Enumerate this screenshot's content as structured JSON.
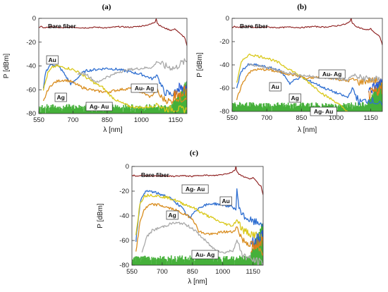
{
  "figure": {
    "panel_labels": [
      "(a)",
      "(b)",
      "(c)"
    ]
  },
  "colors": {
    "bare_fiber": "#8b1a1a",
    "Au": "#2f6fd1",
    "Ag": "#d98d1f",
    "Ag-Au": "#d9c81a",
    "Au-Ag": "#a9a9a9",
    "noise": "#45b03a",
    "tail_blue": "#2b5bd6",
    "tail_orange": "#e07b18"
  },
  "chart_data": [
    {
      "panel": "(a)",
      "type": "line",
      "xlabel": "λ [nm]",
      "ylabel": "P [dBm]",
      "xlim": [
        550,
        1200
      ],
      "ylim": [
        -80,
        0
      ],
      "xticks": [
        550,
        700,
        850,
        1000,
        1150
      ],
      "yticks": [
        0,
        -20,
        -40,
        -60,
        -80
      ],
      "annotations": [
        {
          "text": "Bare fiber",
          "series": "Bare fiber",
          "x": 610,
          "y": -8
        },
        {
          "text": "Au",
          "series": "Au",
          "x": 575,
          "y": -30
        },
        {
          "text": "Ag",
          "series": "Ag",
          "x": 622,
          "y": -59
        },
        {
          "text": "Au- Ag",
          "series": "Au-Ag",
          "x": 965,
          "y": -41
        },
        {
          "text": "Ag- Au",
          "series": "Ag-Au",
          "x": 800,
          "y": -69
        }
      ],
      "series": [
        {
          "name": "Bare fiber",
          "x": [
            550,
            560,
            575,
            600,
            650,
            700,
            750,
            800,
            850,
            900,
            950,
            1000,
            1040,
            1060,
            1065,
            1070,
            1080,
            1100,
            1130,
            1150,
            1170,
            1190,
            1200
          ],
          "y": [
            -8,
            -7,
            -8,
            -7,
            -8,
            -7.5,
            -8,
            -7.5,
            -8,
            -7,
            -7.5,
            -6.5,
            -5,
            -3,
            0,
            -4,
            -6,
            -8,
            -10,
            -9,
            -13,
            -16,
            -23
          ]
        },
        {
          "name": "Au",
          "x": [
            570,
            580,
            600,
            620,
            640,
            660,
            680,
            690,
            700,
            720,
            740,
            760,
            800,
            850,
            900,
            950,
            1000,
            1050,
            1070,
            1080,
            1100,
            1130,
            1150,
            1170,
            1190,
            1200
          ],
          "y": [
            -60,
            -45,
            -39,
            -39,
            -41,
            -46,
            -52,
            -55,
            -54,
            -50,
            -46,
            -44,
            -43,
            -42,
            -43,
            -45,
            -47,
            -51,
            -47,
            -54,
            -62,
            -64,
            -62,
            -58,
            -65,
            -58
          ]
        },
        {
          "name": "Ag",
          "x": [
            570,
            590,
            610,
            630,
            650,
            670,
            690,
            700,
            720,
            740,
            760,
            780,
            800,
            850,
            900,
            950,
            1000,
            1040,
            1060,
            1070,
            1080,
            1100,
            1130,
            1150,
            1170,
            1200
          ],
          "y": [
            -70,
            -60,
            -55,
            -53,
            -52,
            -52,
            -53,
            -54,
            -56,
            -58,
            -59,
            -60,
            -61,
            -62,
            -60,
            -59,
            -62,
            -66,
            -62,
            -60,
            -65,
            -68,
            -70,
            -66,
            -69,
            -65
          ]
        },
        {
          "name": "Ag-Au",
          "x": [
            570,
            590,
            610,
            630,
            650,
            680,
            700,
            730,
            760,
            800,
            830,
            850,
            870,
            900,
            950,
            1000,
            1050,
            1070,
            1100,
            1150,
            1200
          ],
          "y": [
            -60,
            -46,
            -41,
            -40,
            -41,
            -42,
            -43,
            -46,
            -50,
            -55,
            -58,
            -62,
            -66,
            -70,
            -74,
            -75,
            -74,
            -72,
            -76,
            -76,
            -77
          ]
        },
        {
          "name": "Au-Ag",
          "x": [
            720,
            760,
            790,
            810,
            830,
            850,
            870,
            900,
            950,
            1000,
            1050,
            1070,
            1100,
            1150,
            1170,
            1200
          ],
          "y": [
            -46,
            -47,
            -52,
            -54,
            -51,
            -49,
            -48,
            -45,
            -43,
            -42,
            -41,
            -36,
            -40,
            -42,
            -38,
            -36
          ]
        }
      ]
    },
    {
      "panel": "(b)",
      "type": "line",
      "xlabel": "λ [nm]",
      "ylabel": "P [dBm]",
      "xlim": [
        550,
        1200
      ],
      "ylim": [
        -80,
        0
      ],
      "xticks": [
        550,
        700,
        850,
        1000,
        1150
      ],
      "yticks": [
        0,
        -20,
        -40,
        -60,
        -80
      ],
      "annotations": [
        {
          "text": "Bare fiber",
          "series": "Bare fiber",
          "x": 610,
          "y": -8
        },
        {
          "text": "Au",
          "series": "Au",
          "x": 788,
          "y": -53
        },
        {
          "text": "Ag",
          "series": "Ag",
          "x": 836,
          "y": -62
        },
        {
          "text": "Au- Ag",
          "series": "Au-Ag",
          "x": 985,
          "y": -46
        },
        {
          "text": "Ag- Au",
          "series": "Ag-Au",
          "x": 940,
          "y": -77
        }
      ],
      "series": [
        {
          "name": "Bare fiber",
          "x": [
            550,
            560,
            575,
            600,
            650,
            700,
            750,
            800,
            850,
            900,
            950,
            1000,
            1040,
            1060,
            1065,
            1070,
            1080,
            1100,
            1130,
            1150,
            1170,
            1190,
            1200
          ],
          "y": [
            -8,
            -7,
            -8,
            -7,
            -8,
            -7.5,
            -8,
            -7.5,
            -8,
            -7,
            -7.5,
            -6.5,
            -5,
            -3,
            0,
            -4,
            -6,
            -8,
            -10,
            -9,
            -13,
            -16,
            -23
          ]
        },
        {
          "name": "Au",
          "x": [
            570,
            590,
            620,
            650,
            700,
            750,
            780,
            800,
            820,
            850,
            870,
            900,
            950,
            1000,
            1050,
            1070,
            1100,
            1150,
            1200
          ],
          "y": [
            -60,
            -45,
            -40,
            -40,
            -42,
            -44,
            -50,
            -56,
            -53,
            -50,
            -53,
            -55,
            -60,
            -64,
            -68,
            -60,
            -72,
            -70,
            -75
          ]
        },
        {
          "name": "Ag",
          "x": [
            570,
            590,
            620,
            650,
            700,
            750,
            800,
            850,
            870,
            900,
            950,
            1000,
            1050,
            1070,
            1100,
            1150,
            1200
          ],
          "y": [
            -70,
            -58,
            -47,
            -44,
            -44,
            -46,
            -48,
            -50,
            -52,
            -51,
            -50,
            -52,
            -54,
            -52,
            -55,
            -53,
            -55
          ]
        },
        {
          "name": "Ag-Au",
          "x": [
            570,
            590,
            610,
            630,
            650,
            700,
            750,
            800,
            850,
            900,
            950,
            1000,
            1030,
            1050
          ],
          "y": [
            -55,
            -38,
            -33,
            -31,
            -32,
            -34,
            -38,
            -44,
            -50,
            -58,
            -66,
            -72,
            -77,
            -80
          ]
        },
        {
          "name": "Au-Ag",
          "x": [
            620,
            660,
            700,
            750,
            800,
            850,
            900,
            950,
            1000,
            1050,
            1070,
            1100,
            1150,
            1200
          ],
          "y": [
            -40,
            -41,
            -42,
            -45,
            -47,
            -49,
            -50,
            -51,
            -52,
            -53,
            -49,
            -51,
            -52,
            -53
          ]
        }
      ]
    },
    {
      "panel": "(c)",
      "type": "line",
      "xlabel": "λ [nm]",
      "ylabel": "P [dBm]",
      "xlim": [
        550,
        1200
      ],
      "ylim": [
        -80,
        0
      ],
      "xticks": [
        550,
        700,
        850,
        1000,
        1150
      ],
      "yticks": [
        0,
        -20,
        -40,
        -60,
        -80
      ],
      "annotations": [
        {
          "text": "Bare fiber",
          "series": "Bare fiber",
          "x": 610,
          "y": -8
        },
        {
          "text": "Ag- Au",
          "series": "Ag-Au",
          "x": 795,
          "y": -25
        },
        {
          "text": "Au",
          "series": "Au",
          "x": 918,
          "y": -33
        },
        {
          "text": "Ag",
          "series": "Ag",
          "x": 705,
          "y": -45
        },
        {
          "text": "Au- Ag",
          "series": "Au-Ag",
          "x": 870,
          "y": -75
        }
      ],
      "series": [
        {
          "name": "Bare fiber",
          "x": [
            550,
            560,
            575,
            600,
            650,
            700,
            750,
            800,
            850,
            900,
            950,
            1000,
            1040,
            1060,
            1065,
            1070,
            1080,
            1100,
            1130,
            1150,
            1170,
            1190,
            1200
          ],
          "y": [
            -8,
            -7,
            -8,
            -7,
            -8,
            -7.5,
            -8,
            -7.5,
            -8,
            -7,
            -7.5,
            -6.5,
            -5,
            -3,
            0,
            -4,
            -6,
            -8,
            -10,
            -9,
            -13,
            -16,
            -23
          ]
        },
        {
          "name": "Au",
          "x": [
            570,
            590,
            610,
            640,
            680,
            720,
            760,
            800,
            820,
            840,
            860,
            900,
            950,
            1000,
            1050,
            1065,
            1070,
            1080,
            1100,
            1150,
            1200
          ],
          "y": [
            -60,
            -30,
            -21,
            -20,
            -22,
            -24,
            -28,
            -34,
            -39,
            -42,
            -36,
            -32,
            -30,
            -31,
            -33,
            -35,
            -19,
            -33,
            -40,
            -45,
            -46
          ]
        },
        {
          "name": "Ag",
          "x": [
            570,
            590,
            610,
            640,
            680,
            720,
            760,
            800,
            850,
            880,
            900,
            950,
            1000,
            1050,
            1070,
            1100,
            1150,
            1200
          ],
          "y": [
            -70,
            -45,
            -35,
            -31,
            -31,
            -33,
            -35,
            -38,
            -42,
            -52,
            -54,
            -55,
            -53,
            -53,
            -49,
            -60,
            -64,
            -70
          ]
        },
        {
          "name": "Ag-Au",
          "x": [
            570,
            590,
            610,
            640,
            680,
            720,
            760,
            800,
            850,
            900,
            950,
            1000,
            1050,
            1070,
            1100,
            1150,
            1200
          ],
          "y": [
            -55,
            -30,
            -24,
            -23,
            -24,
            -25,
            -27,
            -30,
            -33,
            -38,
            -42,
            -46,
            -48,
            -43,
            -52,
            -55,
            -57
          ]
        },
        {
          "name": "Au-Ag",
          "x": [
            600,
            620,
            650,
            700,
            750,
            800,
            850,
            900,
            950,
            1000,
            1050,
            1070,
            1100,
            1150,
            1200
          ],
          "y": [
            -70,
            -58,
            -52,
            -49,
            -46,
            -46,
            -50,
            -58,
            -66,
            -70,
            -68,
            -60,
            -72,
            -76,
            -78
          ]
        }
      ]
    }
  ]
}
